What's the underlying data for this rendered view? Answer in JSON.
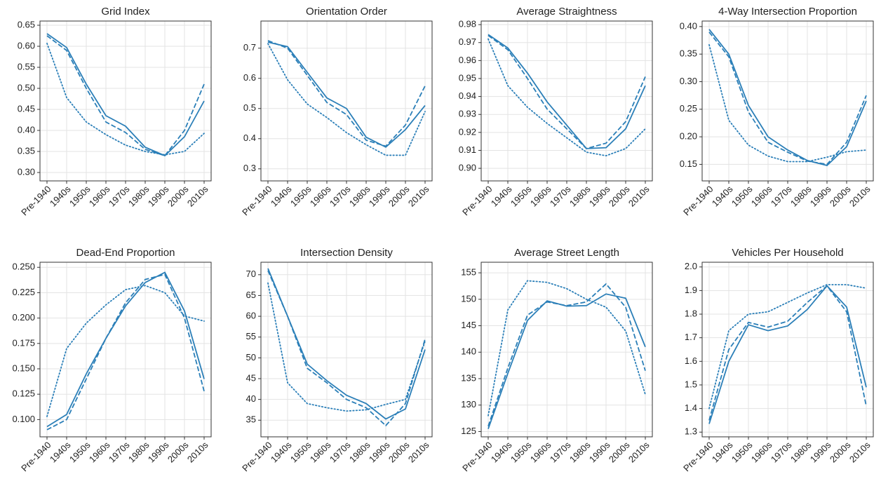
{
  "chart_data": [
    {
      "type": "line",
      "title": "Grid Index",
      "categories": [
        "Pre-1940",
        "1940s",
        "1950s",
        "1960s",
        "1970s",
        "1980s",
        "1990s",
        "2000s",
        "2010s"
      ],
      "ylim": [
        0.28,
        0.66
      ],
      "yticks": [
        {
          "value": 0.3,
          "label": "0.30"
        },
        0.35,
        {
          "value": 0.4,
          "label": "0.40"
        },
        0.45,
        {
          "value": 0.5,
          "label": "0.50"
        },
        0.55,
        {
          "value": 0.6,
          "label": "0.60"
        },
        0.65
      ],
      "grid": true,
      "series": [
        {
          "color": "#2b7fb8",
          "style": "solid",
          "values": [
            0.63,
            0.597,
            0.51,
            0.435,
            0.41,
            0.36,
            0.34,
            0.385,
            0.47
          ]
        },
        {
          "color": "#2b7fb8",
          "style": "dashed",
          "values": [
            0.625,
            0.59,
            0.5,
            0.42,
            0.395,
            0.355,
            0.34,
            0.4,
            0.51
          ]
        },
        {
          "color": "#2b7fb8",
          "style": "dotted",
          "values": [
            0.607,
            0.478,
            0.42,
            0.39,
            0.365,
            0.35,
            0.342,
            0.35,
            0.393
          ]
        }
      ]
    },
    {
      "type": "line",
      "title": "Orientation Order",
      "categories": [
        "Pre-1940",
        "1940s",
        "1950s",
        "1960s",
        "1970s",
        "1980s",
        "1990s",
        "2000s",
        "2010s"
      ],
      "ylim": [
        0.26,
        0.79
      ],
      "yticks": [
        0.3,
        0.4,
        0.5,
        0.6,
        0.7
      ],
      "grid": true,
      "series": [
        {
          "color": "#2b7fb8",
          "style": "solid",
          "values": [
            0.72,
            0.705,
            0.62,
            0.535,
            0.5,
            0.405,
            0.372,
            0.43,
            0.51
          ]
        },
        {
          "color": "#2b7fb8",
          "style": "dashed",
          "values": [
            0.725,
            0.7,
            0.61,
            0.52,
            0.48,
            0.395,
            0.375,
            0.445,
            0.575
          ]
        },
        {
          "color": "#2b7fb8",
          "style": "dotted",
          "values": [
            0.715,
            0.595,
            0.515,
            0.47,
            0.42,
            0.38,
            0.345,
            0.345,
            0.49
          ]
        }
      ]
    },
    {
      "type": "line",
      "title": "Average Straightness",
      "categories": [
        "Pre-1940",
        "1940s",
        "1950s",
        "1960s",
        "1970s",
        "1980s",
        "1990s",
        "2000s",
        "2010s"
      ],
      "ylim": [
        0.893,
        0.982
      ],
      "yticks": [
        {
          "value": 0.9,
          "label": "0.90"
        },
        0.91,
        0.92,
        0.93,
        0.94,
        0.95,
        0.96,
        0.97,
        0.98
      ],
      "grid": true,
      "series": [
        {
          "color": "#2b7fb8",
          "style": "solid",
          "values": [
            0.9745,
            0.967,
            0.953,
            0.937,
            0.924,
            0.911,
            0.9115,
            0.922,
            0.946
          ]
        },
        {
          "color": "#2b7fb8",
          "style": "dashed",
          "values": [
            0.974,
            0.966,
            0.95,
            0.933,
            0.922,
            0.911,
            0.914,
            0.926,
            0.951
          ]
        },
        {
          "color": "#2b7fb8",
          "style": "dotted",
          "values": [
            0.972,
            0.946,
            0.934,
            0.925,
            0.917,
            0.909,
            0.907,
            0.911,
            0.922
          ]
        }
      ]
    },
    {
      "type": "line",
      "title": "4-Way Intersection Proportion",
      "categories": [
        "Pre-1940",
        "1940s",
        "1950s",
        "1960s",
        "1970s",
        "1980s",
        "1990s",
        "2000s",
        "2010s"
      ],
      "ylim": [
        0.12,
        0.41
      ],
      "yticks": [
        0.15,
        {
          "value": 0.2,
          "label": "0.20"
        },
        0.25,
        {
          "value": 0.3,
          "label": "0.30"
        },
        0.35,
        {
          "value": 0.4,
          "label": "0.40"
        }
      ],
      "grid": true,
      "series": [
        {
          "color": "#2b7fb8",
          "style": "solid",
          "values": [
            0.395,
            0.35,
            0.257,
            0.2,
            0.176,
            0.157,
            0.148,
            0.182,
            0.265
          ]
        },
        {
          "color": "#2b7fb8",
          "style": "dashed",
          "values": [
            0.39,
            0.345,
            0.245,
            0.19,
            0.172,
            0.156,
            0.15,
            0.19,
            0.275
          ]
        },
        {
          "color": "#2b7fb8",
          "style": "dotted",
          "values": [
            0.367,
            0.23,
            0.185,
            0.165,
            0.155,
            0.155,
            0.163,
            0.173,
            0.176
          ]
        }
      ]
    },
    {
      "type": "line",
      "title": "Dead-End Proportion",
      "categories": [
        "Pre-1940",
        "1940s",
        "1950s",
        "1960s",
        "1970s",
        "1980s",
        "1990s",
        "2000s",
        "2010s"
      ],
      "ylim": [
        0.083,
        0.255
      ],
      "yticks": [
        {
          "value": 0.1,
          "label": "0.100"
        },
        0.125,
        {
          "value": 0.15,
          "label": "0.150"
        },
        0.175,
        {
          "value": 0.2,
          "label": "0.200"
        },
        0.225,
        {
          "value": 0.25,
          "label": "0.250"
        }
      ],
      "grid": true,
      "series": [
        {
          "color": "#2b7fb8",
          "style": "solid",
          "values": [
            0.093,
            0.105,
            0.145,
            0.18,
            0.212,
            0.235,
            0.245,
            0.207,
            0.14
          ]
        },
        {
          "color": "#2b7fb8",
          "style": "dashed",
          "values": [
            0.09,
            0.1,
            0.14,
            0.18,
            0.215,
            0.238,
            0.243,
            0.2,
            0.128
          ]
        },
        {
          "color": "#2b7fb8",
          "style": "dotted",
          "values": [
            0.103,
            0.17,
            0.195,
            0.213,
            0.228,
            0.232,
            0.225,
            0.202,
            0.197
          ]
        }
      ]
    },
    {
      "type": "line",
      "title": "Intersection Density",
      "categories": [
        "Pre-1940",
        "1940s",
        "1950s",
        "1960s",
        "1970s",
        "1980s",
        "1990s",
        "2000s",
        "2010s"
      ],
      "ylim": [
        31,
        73
      ],
      "yticks": [
        35,
        40,
        45,
        50,
        55,
        60,
        65,
        70
      ],
      "grid": true,
      "series": [
        {
          "color": "#2b7fb8",
          "style": "solid",
          "values": [
            71.5,
            60,
            48.5,
            44.5,
            41,
            39,
            35.3,
            37.7,
            52
          ]
        },
        {
          "color": "#2b7fb8",
          "style": "dashed",
          "values": [
            71,
            60,
            47.5,
            44,
            40,
            38,
            33.7,
            39,
            54.5
          ]
        },
        {
          "color": "#2b7fb8",
          "style": "dotted",
          "values": [
            68,
            44,
            39,
            38,
            37.2,
            37.5,
            38.8,
            40,
            54
          ]
        }
      ]
    },
    {
      "type": "line",
      "title": "Average Street Length",
      "categories": [
        "Pre-1940",
        "1940s",
        "1950s",
        "1960s",
        "1970s",
        "1980s",
        "1990s",
        "2000s",
        "2010s"
      ],
      "ylim": [
        124,
        157
      ],
      "yticks": [
        125,
        130,
        135,
        140,
        145,
        150,
        155
      ],
      "grid": true,
      "series": [
        {
          "color": "#2b7fb8",
          "style": "solid",
          "values": [
            125.5,
            136,
            146,
            149.7,
            148.7,
            148.8,
            151,
            150.2,
            141
          ]
        },
        {
          "color": "#2b7fb8",
          "style": "dashed",
          "values": [
            126,
            137,
            147,
            149.5,
            148.8,
            149.5,
            152.9,
            148.5,
            136.5
          ]
        },
        {
          "color": "#2b7fb8",
          "style": "dotted",
          "values": [
            128,
            148,
            153.5,
            153.2,
            152,
            150,
            148.5,
            144,
            132
          ]
        }
      ]
    },
    {
      "type": "line",
      "title": "Vehicles Per Household",
      "categories": [
        "Pre-1940",
        "1940s",
        "1950s",
        "1960s",
        "1970s",
        "1980s",
        "1990s",
        "2000s",
        "2010s"
      ],
      "ylim": [
        1.28,
        2.02
      ],
      "yticks": [
        1.3,
        1.4,
        1.5,
        1.6,
        1.7,
        1.8,
        1.9,
        {
          "value": 2,
          "label": "2.0"
        }
      ],
      "grid": true,
      "series": [
        {
          "color": "#2b7fb8",
          "style": "solid",
          "values": [
            1.335,
            1.6,
            1.755,
            1.73,
            1.75,
            1.82,
            1.92,
            1.83,
            1.49
          ]
        },
        {
          "color": "#2b7fb8",
          "style": "dashed",
          "values": [
            1.35,
            1.65,
            1.765,
            1.745,
            1.77,
            1.85,
            1.92,
            1.81,
            1.41
          ]
        },
        {
          "color": "#2b7fb8",
          "style": "dotted",
          "values": [
            1.4,
            1.73,
            1.8,
            1.81,
            1.85,
            1.89,
            1.925,
            1.925,
            1.91
          ]
        }
      ]
    }
  ]
}
